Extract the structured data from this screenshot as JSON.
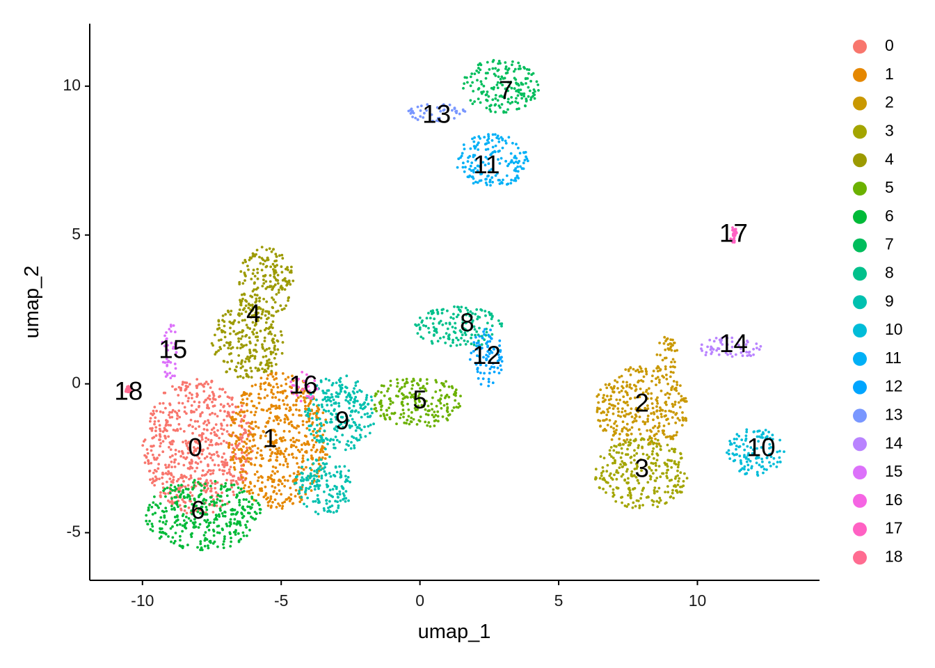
{
  "chart_data": {
    "type": "scatter",
    "title": "",
    "xlabel": "umap_1",
    "ylabel": "umap_2",
    "xlim": [
      -11.9,
      14.4
    ],
    "ylim": [
      -6.6,
      12.1
    ],
    "x_ticks": [
      {
        "value": -10,
        "label": "-10"
      },
      {
        "value": -5,
        "label": "-5"
      },
      {
        "value": 0,
        "label": "0"
      },
      {
        "value": 5,
        "label": "5"
      },
      {
        "value": 10,
        "label": "10"
      }
    ],
    "y_ticks": [
      {
        "value": -5,
        "label": "-5"
      },
      {
        "value": 0,
        "label": "0"
      },
      {
        "value": 5,
        "label": "5"
      },
      {
        "value": 10,
        "label": "10"
      }
    ],
    "grid": false,
    "legend_position": "right",
    "clusters": [
      {
        "name": "0",
        "label_x": -8.1,
        "label_y": -2.2,
        "color": "#F8766D",
        "regions": [
          [
            -8.0,
            -2.1,
            2.0,
            2.3
          ]
        ]
      },
      {
        "name": "1",
        "label_x": -5.4,
        "label_y": -1.9,
        "color": "#E58700",
        "regions": [
          [
            -5.1,
            -1.9,
            1.8,
            2.3
          ]
        ]
      },
      {
        "name": "2",
        "label_x": 8.0,
        "label_y": -0.7,
        "color": "#C99800",
        "regions": [
          [
            8.0,
            -0.8,
            1.7,
            1.4
          ],
          [
            8.9,
            0.9,
            0.4,
            0.7
          ]
        ]
      },
      {
        "name": "3",
        "label_x": 8.0,
        "label_y": -2.9,
        "color": "#A3A500",
        "regions": [
          [
            8.0,
            -3.0,
            1.7,
            1.2
          ]
        ]
      },
      {
        "name": "4",
        "label_x": -6.0,
        "label_y": 2.3,
        "color": "#9C9A00",
        "regions": [
          [
            -5.6,
            3.4,
            1.1,
            1.2
          ],
          [
            -6.2,
            1.4,
            1.3,
            1.3
          ]
        ]
      },
      {
        "name": "5",
        "label_x": 0.0,
        "label_y": -0.6,
        "color": "#6BB100",
        "regions": [
          [
            -0.1,
            -0.6,
            1.6,
            0.9
          ]
        ]
      },
      {
        "name": "6",
        "label_x": -8.0,
        "label_y": -4.3,
        "color": "#00BA38",
        "regions": [
          [
            -7.8,
            -4.4,
            2.1,
            1.2
          ]
        ]
      },
      {
        "name": "7",
        "label_x": 3.1,
        "label_y": 9.8,
        "color": "#00BD5C",
        "regions": [
          [
            2.9,
            10.0,
            1.4,
            0.9
          ]
        ]
      },
      {
        "name": "8",
        "label_x": 1.7,
        "label_y": 2.0,
        "color": "#00C08B",
        "regions": [
          [
            1.4,
            1.9,
            1.6,
            0.7
          ]
        ]
      },
      {
        "name": "9",
        "label_x": -2.8,
        "label_y": -1.3,
        "color": "#00C0AF",
        "regions": [
          [
            -2.9,
            -1.0,
            1.3,
            1.3
          ],
          [
            -3.5,
            -3.4,
            1.1,
            1.0
          ]
        ]
      },
      {
        "name": "10",
        "label_x": 12.3,
        "label_y": -2.2,
        "color": "#00BCD8",
        "regions": [
          [
            12.1,
            -2.3,
            1.1,
            0.8
          ]
        ]
      },
      {
        "name": "11",
        "label_x": 2.4,
        "label_y": 7.3,
        "color": "#00B0F6",
        "regions": [
          [
            2.6,
            7.5,
            1.3,
            0.9
          ]
        ]
      },
      {
        "name": "12",
        "label_x": 2.4,
        "label_y": 0.9,
        "color": "#00A5FF",
        "regions": [
          [
            2.4,
            0.9,
            0.6,
            1.0
          ]
        ]
      },
      {
        "name": "13",
        "label_x": 0.6,
        "label_y": 9.0,
        "color": "#7997FF",
        "regions": [
          [
            0.6,
            9.1,
            1.1,
            0.3
          ]
        ]
      },
      {
        "name": "14",
        "label_x": 11.3,
        "label_y": 1.3,
        "color": "#B983FF",
        "regions": [
          [
            11.2,
            1.2,
            1.1,
            0.4
          ]
        ]
      },
      {
        "name": "15",
        "label_x": -8.9,
        "label_y": 1.1,
        "color": "#DC71FA",
        "regions": [
          [
            -9.0,
            1.1,
            0.3,
            1.0
          ]
        ]
      },
      {
        "name": "16",
        "label_x": -4.2,
        "label_y": -0.1,
        "color": "#F564E3",
        "regions": [
          [
            -4.2,
            -0.1,
            0.5,
            0.5
          ]
        ]
      },
      {
        "name": "17",
        "label_x": 11.3,
        "label_y": 5.0,
        "color": "#FF61C3",
        "regions": [
          [
            11.3,
            5.0,
            0.12,
            0.3
          ]
        ]
      },
      {
        "name": "18",
        "label_x": -10.5,
        "label_y": -0.3,
        "color": "#FF6C91",
        "regions": [
          [
            -10.5,
            -0.2,
            0.12,
            0.12
          ]
        ]
      }
    ]
  }
}
